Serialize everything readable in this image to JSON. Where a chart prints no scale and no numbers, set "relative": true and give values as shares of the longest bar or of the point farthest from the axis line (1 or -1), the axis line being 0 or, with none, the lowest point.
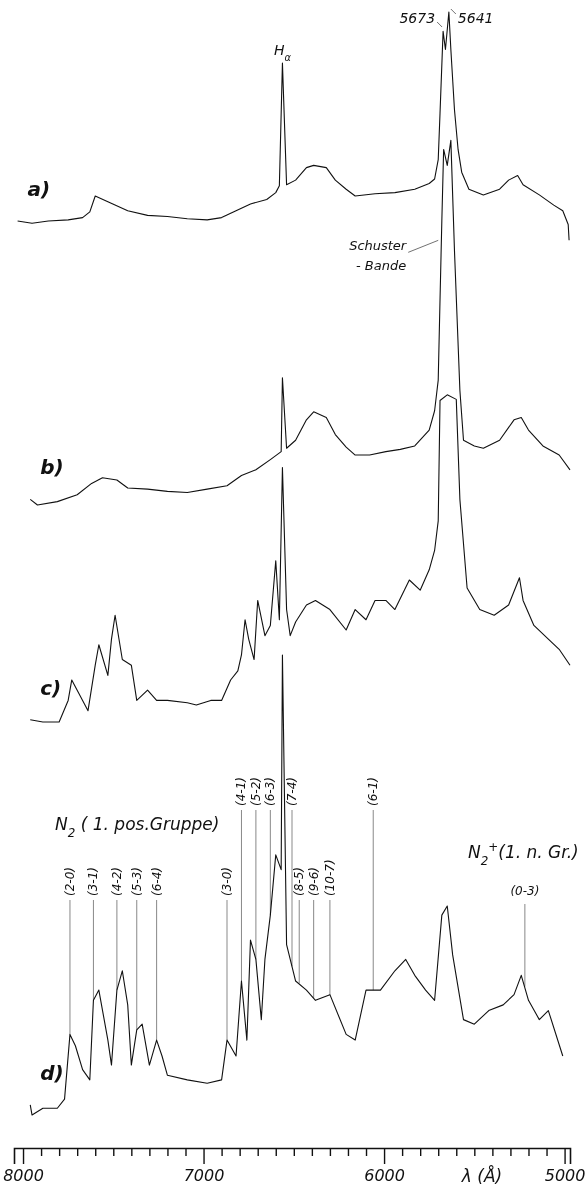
{
  "chart_data": {
    "type": "line",
    "relative": true,
    "xlabel": "λ (Å)",
    "xlim": [
      8050,
      4970
    ],
    "xticks": [
      8000,
      {
        "value": 7900,
        "label": null
      },
      {
        "value": 7800,
        "label": null
      },
      {
        "value": 7700,
        "label": null
      },
      {
        "value": 7600,
        "label": null
      },
      {
        "value": 7500,
        "label": null
      },
      {
        "value": 7400,
        "label": null
      },
      {
        "value": 7300,
        "label": null
      },
      {
        "value": 7200,
        "label": null
      },
      {
        "value": 7100,
        "label": null
      },
      7000,
      {
        "value": 6900,
        "label": null
      },
      {
        "value": 6800,
        "label": null
      },
      {
        "value": 6700,
        "label": null
      },
      {
        "value": 6600,
        "label": null
      },
      {
        "value": 6500,
        "label": null
      },
      {
        "value": 6400,
        "label": null
      },
      {
        "value": 6300,
        "label": null
      },
      {
        "value": 6200,
        "label": null
      },
      {
        "value": 6100,
        "label": null
      },
      6000,
      {
        "value": 5900,
        "label": null
      },
      {
        "value": 5800,
        "label": null
      },
      {
        "value": 5700,
        "label": null
      },
      {
        "value": 5600,
        "label": null
      },
      {
        "value": 5500,
        "label": null
      },
      {
        "value": 5400,
        "label": null
      },
      {
        "value": 5300,
        "label": null
      },
      {
        "value": 5200,
        "label": null
      },
      {
        "value": 5100,
        "label": null
      },
      5000
    ],
    "series": [
      {
        "name": "a)",
        "color": "#111111",
        "x": [
          8030,
          7950,
          7860,
          7750,
          7670,
          7630,
          7600,
          7530,
          7420,
          7310,
          7200,
          7090,
          6980,
          6900,
          6820,
          6740,
          6650,
          6600,
          6580,
          6563,
          6540,
          6490,
          6430,
          6390,
          6320,
          6270,
          6210,
          6160,
          6050,
          5940,
          5830,
          5750,
          5720,
          5700,
          5690,
          5673,
          5660,
          5641,
          5630,
          5610,
          5590,
          5570,
          5530,
          5450,
          5360,
          5310,
          5260,
          5230,
          5140,
          5060,
          5010,
          4980,
          4975
        ],
        "values": [
          0.816,
          0.814,
          0.816,
          0.817,
          0.819,
          0.824,
          0.838,
          0.833,
          0.825,
          0.821,
          0.82,
          0.818,
          0.817,
          0.819,
          0.825,
          0.831,
          0.835,
          0.841,
          0.847,
          0.955,
          0.848,
          0.852,
          0.863,
          0.865,
          0.863,
          0.852,
          0.844,
          0.838,
          0.84,
          0.841,
          0.844,
          0.849,
          0.853,
          0.87,
          0.911,
          0.983,
          0.967,
          1,
          0.967,
          0.914,
          0.879,
          0.859,
          0.844,
          0.839,
          0.844,
          0.852,
          0.856,
          0.848,
          0.839,
          0.83,
          0.825,
          0.813,
          0.799
        ]
      },
      {
        "name": "b)",
        "color": "#111111",
        "x": [
          7960,
          7920,
          7810,
          7700,
          7620,
          7560,
          7480,
          7420,
          7310,
          7200,
          7090,
          6980,
          6870,
          6790,
          6710,
          6630,
          6570,
          6563,
          6540,
          6490,
          6430,
          6390,
          6320,
          6270,
          6210,
          6160,
          6080,
          5990,
          5910,
          5830,
          5750,
          5720,
          5700,
          5690,
          5680,
          5670,
          5650,
          5630,
          5610,
          5580,
          5560,
          5500,
          5450,
          5360,
          5280,
          5240,
          5200,
          5120,
          5030,
          4970
        ],
        "values": [
          0.571,
          0.566,
          0.569,
          0.575,
          0.585,
          0.59,
          0.588,
          0.581,
          0.58,
          0.578,
          0.577,
          0.58,
          0.583,
          0.592,
          0.597,
          0.606,
          0.613,
          0.678,
          0.616,
          0.623,
          0.641,
          0.648,
          0.643,
          0.628,
          0.617,
          0.61,
          0.61,
          0.613,
          0.615,
          0.618,
          0.632,
          0.649,
          0.676,
          0.747,
          0.816,
          0.879,
          0.865,
          0.887,
          0.79,
          0.667,
          0.623,
          0.618,
          0.616,
          0.623,
          0.641,
          0.643,
          0.632,
          0.618,
          0.61,
          0.597
        ]
      },
      {
        "name": "c)",
        "color": "#111111",
        "x": [
          7960,
          7890,
          7800,
          7750,
          7730,
          7700,
          7640,
          7600,
          7580,
          7530,
          7510,
          7490,
          7450,
          7400,
          7370,
          7310,
          7260,
          7200,
          7090,
          7040,
          6960,
          6900,
          6850,
          6810,
          6790,
          6770,
          6750,
          6720,
          6700,
          6660,
          6630,
          6600,
          6580,
          6563,
          6540,
          6520,
          6490,
          6430,
          6380,
          6300,
          6210,
          6160,
          6100,
          6050,
          5990,
          5940,
          5860,
          5800,
          5750,
          5720,
          5700,
          5690,
          5650,
          5600,
          5580,
          5540,
          5470,
          5390,
          5310,
          5250,
          5230,
          5170,
          5090,
          5030,
          4970
        ],
        "values": [
          0.377,
          0.375,
          0.375,
          0.394,
          0.412,
          0.403,
          0.385,
          0.425,
          0.443,
          0.416,
          0.448,
          0.469,
          0.43,
          0.425,
          0.394,
          0.403,
          0.394,
          0.394,
          0.392,
          0.39,
          0.394,
          0.394,
          0.412,
          0.42,
          0.434,
          0.465,
          0.448,
          0.43,
          0.482,
          0.451,
          0.46,
          0.517,
          0.465,
          0.599,
          0.474,
          0.451,
          0.463,
          0.478,
          0.482,
          0.474,
          0.456,
          0.474,
          0.465,
          0.482,
          0.482,
          0.474,
          0.5,
          0.491,
          0.509,
          0.526,
          0.552,
          0.658,
          0.663,
          0.659,
          0.571,
          0.493,
          0.474,
          0.469,
          0.478,
          0.502,
          0.482,
          0.46,
          0.448,
          0.439,
          0.425
        ]
      },
      {
        "name": "d)",
        "color": "#111111",
        "x": [
          7960,
          7950,
          7890,
          7810,
          7770,
          7740,
          7710,
          7670,
          7630,
          7610,
          7580,
          7530,
          7510,
          7480,
          7450,
          7420,
          7400,
          7370,
          7340,
          7300,
          7260,
          7230,
          7200,
          7090,
          6980,
          6900,
          6870,
          6820,
          6790,
          6760,
          6740,
          6710,
          6680,
          6660,
          6630,
          6600,
          6570,
          6563,
          6540,
          6490,
          6430,
          6380,
          6300,
          6210,
          6160,
          6100,
          6020,
          5940,
          5880,
          5830,
          5770,
          5720,
          5680,
          5650,
          5620,
          5560,
          5500,
          5420,
          5340,
          5280,
          5240,
          5200,
          5140,
          5090,
          5010
        ],
        "values": [
          0.038,
          0.029,
          0.035,
          0.035,
          0.043,
          0.1,
          0.09,
          0.069,
          0.06,
          0.13,
          0.139,
          0.095,
          0.073,
          0.139,
          0.156,
          0.126,
          0.073,
          0.104,
          0.109,
          0.073,
          0.095,
          0.081,
          0.064,
          0.06,
          0.057,
          0.06,
          0.095,
          0.081,
          0.147,
          0.095,
          0.183,
          0.166,
          0.113,
          0.166,
          0.205,
          0.258,
          0.245,
          0.434,
          0.179,
          0.147,
          0.139,
          0.13,
          0.135,
          0.1,
          0.095,
          0.139,
          0.139,
          0.156,
          0.166,
          0.152,
          0.139,
          0.13,
          0.205,
          0.213,
          0.17,
          0.113,
          0.109,
          0.121,
          0.126,
          0.135,
          0.152,
          0.13,
          0.113,
          0.121,
          0.081
        ]
      }
    ],
    "annotations": [
      {
        "text": "H$_{α}$",
        "x": 6563,
        "y": 0.955
      },
      {
        "text": "5673",
        "x": 5673,
        "y": 0.983
      },
      {
        "text": "5641",
        "x": 5641,
        "y": 1
      },
      {
        "text": "Schuster\n- Bande",
        "x": 5700,
        "y": 0.799
      },
      "N$_{2}$ ( 1. pos.Gruppe)",
      {
        "text": "(2-0)",
        "x": 7740,
        "y": 0.1
      },
      {
        "text": "(3-1)",
        "x": 7610,
        "y": 0.13
      },
      {
        "text": "(4-2)",
        "x": 7480,
        "y": 0.139
      },
      {
        "text": "(5-3)",
        "x": 7370,
        "y": 0.104
      },
      {
        "text": "(6-4)",
        "x": 7260,
        "y": 0.095
      },
      {
        "text": "(3-0)",
        "x": 6870,
        "y": 0.095
      },
      {
        "text": "(4-1)",
        "x": 6790,
        "y": 0.147
      },
      {
        "text": "(5-2)",
        "x": 6710,
        "y": 0.166
      },
      {
        "text": "(6-3)",
        "x": 6630,
        "y": 0.205
      },
      {
        "text": "(7-4)",
        "x": 6510,
        "y": 0.16
      },
      {
        "text": "(8-5)",
        "x": 6470,
        "y": 0.145
      },
      {
        "text": "(9-6)",
        "x": 6390,
        "y": 0.132
      },
      {
        "text": "(10-7)",
        "x": 6300,
        "y": 0.135
      },
      {
        "text": "(6-1)",
        "x": 6060,
        "y": 0.139
      },
      "N$_{2}$$^{+}$(1. n. Gr.)",
      {
        "text": "(0-3)",
        "x": 5220,
        "y": 0.142
      }
    ]
  }
}
